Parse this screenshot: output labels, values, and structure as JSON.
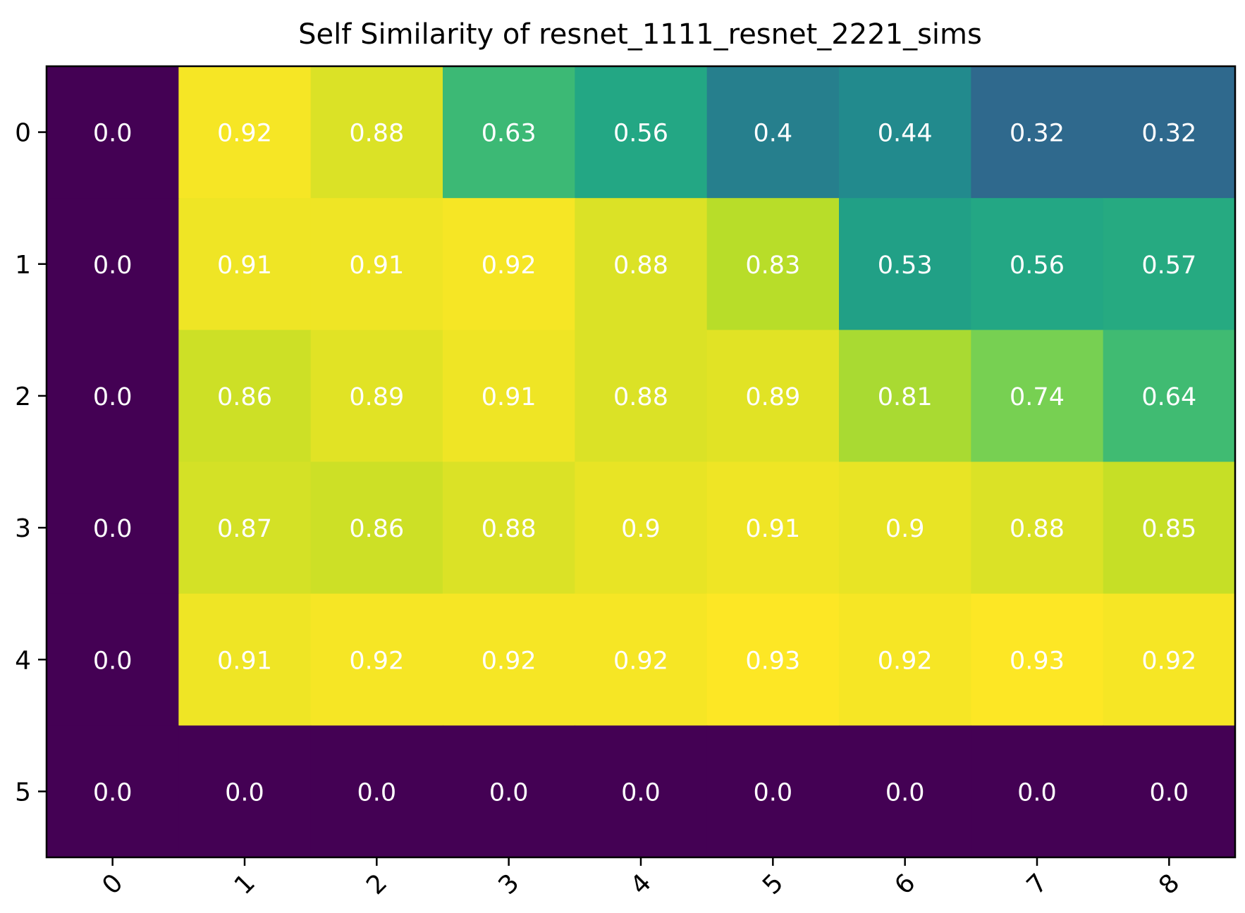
{
  "chart_data": {
    "type": "heatmap",
    "title": "Self Similarity of resnet_1111_resnet_2221_sims",
    "xlabel": "",
    "ylabel": "",
    "x_ticks": [
      "0",
      "1",
      "2",
      "3",
      "4",
      "5",
      "6",
      "7",
      "8"
    ],
    "y_ticks": [
      "0",
      "1",
      "2",
      "3",
      "4",
      "5"
    ],
    "colormap": "viridis",
    "vmin": 0.0,
    "vmax": 0.93,
    "grid": false,
    "legend": "none",
    "values": [
      [
        0.0,
        0.92,
        0.88,
        0.63,
        0.56,
        0.4,
        0.44,
        0.32,
        0.32
      ],
      [
        0.0,
        0.91,
        0.91,
        0.92,
        0.88,
        0.83,
        0.53,
        0.56,
        0.57
      ],
      [
        0.0,
        0.86,
        0.89,
        0.91,
        0.88,
        0.89,
        0.81,
        0.74,
        0.64
      ],
      [
        0.0,
        0.87,
        0.86,
        0.88,
        0.9,
        0.91,
        0.9,
        0.88,
        0.85
      ],
      [
        0.0,
        0.91,
        0.92,
        0.92,
        0.92,
        0.93,
        0.92,
        0.93,
        0.92
      ],
      [
        0.0,
        0.0,
        0.0,
        0.0,
        0.0,
        0.0,
        0.0,
        0.0,
        0.0
      ]
    ],
    "labels": [
      [
        "0.0",
        "0.92",
        "0.88",
        "0.63",
        "0.56",
        "0.4",
        "0.44",
        "0.32",
        "0.32"
      ],
      [
        "0.0",
        "0.91",
        "0.91",
        "0.92",
        "0.88",
        "0.83",
        "0.53",
        "0.56",
        "0.57"
      ],
      [
        "0.0",
        "0.86",
        "0.89",
        "0.91",
        "0.88",
        "0.89",
        "0.81",
        "0.74",
        "0.64"
      ],
      [
        "0.0",
        "0.87",
        "0.86",
        "0.88",
        "0.9",
        "0.91",
        "0.9",
        "0.88",
        "0.85"
      ],
      [
        "0.0",
        "0.91",
        "0.92",
        "0.92",
        "0.92",
        "0.93",
        "0.92",
        "0.93",
        "0.92"
      ],
      [
        "0.0",
        "0.0",
        "0.0",
        "0.0",
        "0.0",
        "0.0",
        "0.0",
        "0.0",
        "0.0"
      ]
    ],
    "colors": {
      "text": "#000000",
      "cell_label": "#ffffff",
      "frame": "#000000"
    }
  }
}
